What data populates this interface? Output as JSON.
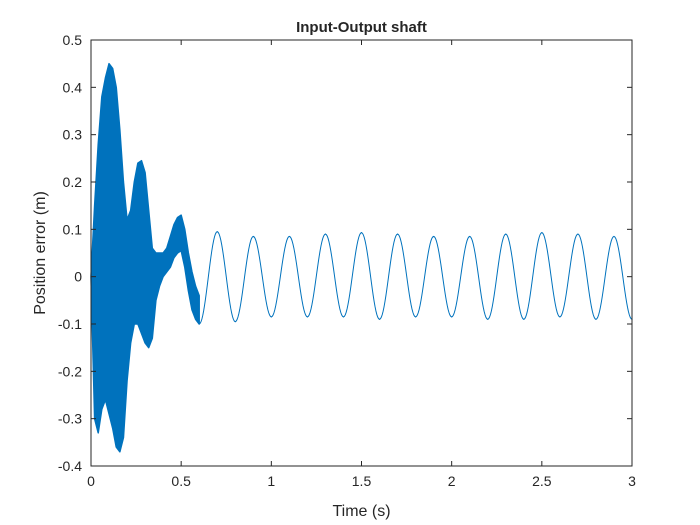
{
  "chart_data": {
    "type": "line",
    "title": "Input-Output shaft",
    "xlabel": "Time (s)",
    "ylabel": "Position error (m)",
    "xlim": [
      0,
      3
    ],
    "ylim": [
      -0.4,
      0.5
    ],
    "xticks": [
      0,
      0.5,
      1,
      1.5,
      2,
      2.5,
      3
    ],
    "yticks": [
      -0.4,
      -0.3,
      -0.2,
      -0.1,
      0,
      0.1,
      0.2,
      0.3,
      0.4,
      0.5
    ],
    "xtick_labels": [
      "0",
      "0.5",
      "1",
      "1.5",
      "2",
      "2.5",
      "3"
    ],
    "ytick_labels": [
      "-0.4",
      "-0.3",
      "-0.2",
      "-0.1",
      "0",
      "0.1",
      "0.2",
      "0.3",
      "0.4",
      "0.5"
    ],
    "grid": false,
    "color": "#0072BD",
    "series": [
      {
        "envelope_upper": {
          "x": [
            0,
            0.02,
            0.04,
            0.06,
            0.08,
            0.1,
            0.12,
            0.14,
            0.16,
            0.18,
            0.2,
            0.22,
            0.24,
            0.26,
            0.28,
            0.3,
            0.32,
            0.34,
            0.36,
            0.38,
            0.4,
            0.42,
            0.44,
            0.46,
            0.48,
            0.5,
            0.52,
            0.54,
            0.56,
            0.58,
            0.6
          ],
          "y": [
            0.0,
            0.15,
            0.28,
            0.38,
            0.42,
            0.45,
            0.44,
            0.4,
            0.31,
            0.2,
            0.12,
            0.14,
            0.2,
            0.24,
            0.245,
            0.22,
            0.14,
            0.06,
            0.05,
            0.05,
            0.05,
            0.06,
            0.085,
            0.11,
            0.125,
            0.13,
            0.1,
            0.05,
            0.01,
            -0.02,
            -0.04
          ]
        },
        "envelope_lower": {
          "x": [
            0,
            0.02,
            0.04,
            0.06,
            0.08,
            0.1,
            0.12,
            0.14,
            0.16,
            0.18,
            0.2,
            0.22,
            0.24,
            0.26,
            0.28,
            0.3,
            0.32,
            0.34,
            0.36,
            0.38,
            0.4,
            0.42,
            0.44,
            0.46,
            0.48,
            0.5,
            0.52,
            0.54,
            0.56,
            0.58,
            0.6
          ],
          "y": [
            0.0,
            -0.3,
            -0.33,
            -0.28,
            -0.26,
            -0.29,
            -0.32,
            -0.36,
            -0.37,
            -0.34,
            -0.22,
            -0.14,
            -0.1,
            -0.1,
            -0.12,
            -0.14,
            -0.15,
            -0.13,
            -0.05,
            -0.02,
            0.0,
            0.01,
            0.02,
            0.04,
            0.05,
            0.055,
            0.02,
            -0.03,
            -0.07,
            -0.09,
            -0.1
          ]
        },
        "oscillation": {
          "start": 0.6,
          "end": 3.0,
          "period": 0.2,
          "peaks_x": [
            0.7,
            0.9,
            1.1,
            1.3,
            1.5,
            1.7,
            1.9,
            2.1,
            2.3,
            2.5,
            2.7,
            2.9
          ],
          "peaks_y": [
            0.095,
            0.085,
            0.085,
            0.09,
            0.093,
            0.09,
            0.085,
            0.085,
            0.09,
            0.093,
            0.09,
            0.085
          ],
          "troughs_x": [
            0.8,
            1.0,
            1.2,
            1.4,
            1.6,
            1.8,
            2.0,
            2.2,
            2.4,
            2.6,
            2.8,
            3.0
          ],
          "troughs_y": [
            -0.095,
            -0.085,
            -0.085,
            -0.085,
            -0.09,
            -0.085,
            -0.085,
            -0.09,
            -0.09,
            -0.085,
            -0.09,
            -0.09
          ]
        }
      }
    ]
  }
}
